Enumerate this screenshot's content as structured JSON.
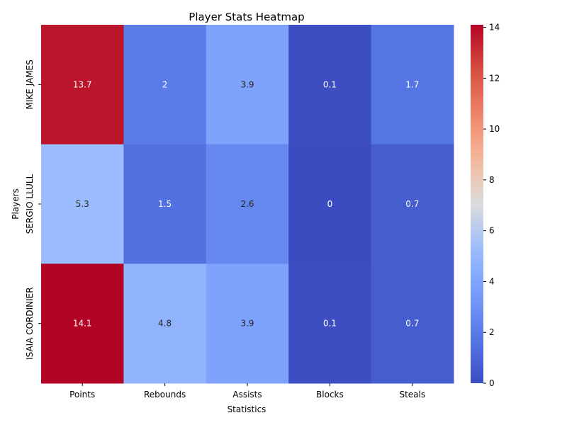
{
  "chart_data": {
    "type": "heatmap",
    "title": "Player Stats Heatmap",
    "xlabel": "Statistics",
    "ylabel": "Players",
    "columns": [
      "Points",
      "Rebounds",
      "Assists",
      "Blocks",
      "Steals"
    ],
    "rows": [
      "MIKE JAMES",
      "SERGIO LLULL",
      "ISAIA CORDINIER"
    ],
    "values": [
      [
        13.7,
        2,
        3.9,
        0.1,
        1.7
      ],
      [
        5.3,
        1.5,
        2.6,
        0,
        0.7
      ],
      [
        14.1,
        4.8,
        3.9,
        0.1,
        0.7
      ]
    ],
    "colorscale": "coolwarm",
    "vmin": 0,
    "vmax": 14.1,
    "colorbar_ticks": [
      0,
      2,
      4,
      6,
      8,
      10,
      12,
      14
    ],
    "colorbar_tick_labels": [
      "0",
      "2",
      "4",
      "6",
      "8",
      "10",
      "12",
      "14"
    ]
  }
}
